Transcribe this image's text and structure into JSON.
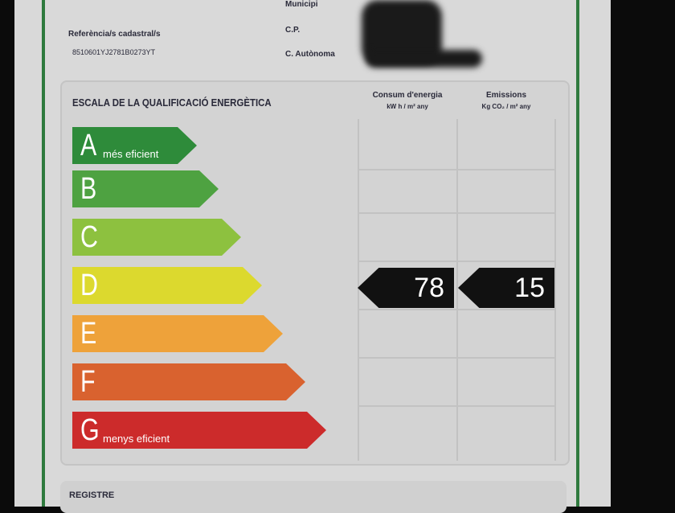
{
  "header": {
    "municipi_label": "Municipi",
    "cp_label": "C.P.",
    "autonoma_label": "C. Autònoma",
    "cadastral_label": "Referència/s cadastral/s",
    "cadastral_value": "8510601YJ2781B0273YT"
  },
  "scale": {
    "title": "ESCALA DE LA QUALIFICACIÓ ENERGÈTICA",
    "consum_label": "Consum d'energia",
    "consum_unit": "kW h / m² any",
    "emissions_label": "Emissions",
    "emissions_unit": "Kg CO₂ / m² any",
    "classes": [
      {
        "letter": "A",
        "sub": "més eficient",
        "color": "#2e8b3a"
      },
      {
        "letter": "B",
        "sub": "",
        "color": "#4ea241"
      },
      {
        "letter": "C",
        "sub": "",
        "color": "#8dc13f"
      },
      {
        "letter": "D",
        "sub": "",
        "color": "#dcd92e"
      },
      {
        "letter": "E",
        "sub": "",
        "color": "#eea23a"
      },
      {
        "letter": "F",
        "sub": "",
        "color": "#d9622f"
      },
      {
        "letter": "G",
        "sub": "menys eficient",
        "color": "#cc2b2b"
      }
    ],
    "rating_class": "D",
    "consum_value": "78",
    "emissions_value": "15"
  },
  "footer": {
    "registre_label": "REGISTRE"
  }
}
